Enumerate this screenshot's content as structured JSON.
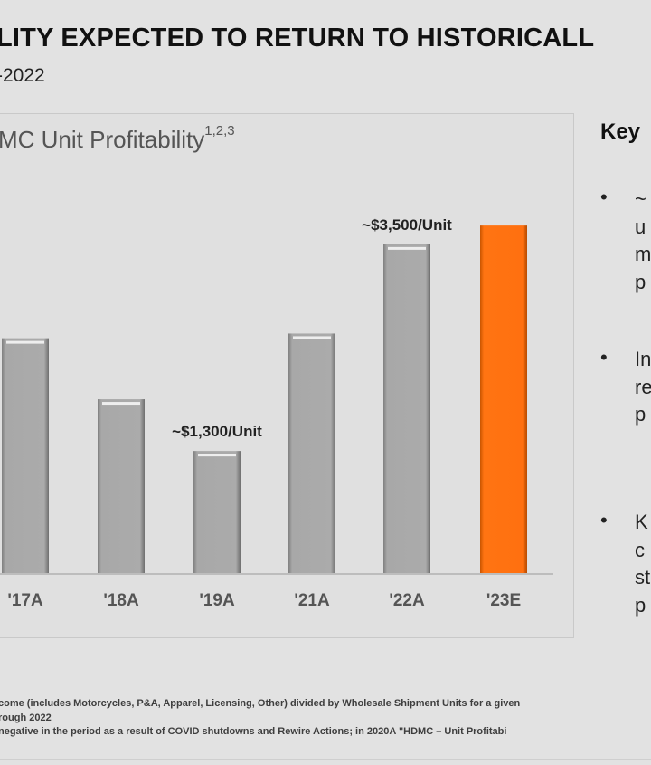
{
  "header": {
    "title": "LITY EXPECTED TO RETURN TO HISTORICALL",
    "subtitle": "-2022"
  },
  "key_panel": {
    "title": "Key",
    "bullets": [
      {
        "symbol": "•",
        "lines": [
          "~",
          "u",
          "m",
          "p"
        ]
      },
      {
        "symbol": "•",
        "lines": [
          "In",
          "re",
          "p"
        ]
      },
      {
        "symbol": "•",
        "lines": [
          "K",
          "c",
          "st",
          "p"
        ]
      }
    ]
  },
  "footnotes": [
    "come (includes Motorcycles, P&A, Apparel, Licensing, Other) divided by Wholesale Shipment Units for a given",
    "rough 2022",
    "negative in the period as a result of COVID shutdowns and Rewire Actions; in 2020A \"HDMC – Unit Profitabi"
  ],
  "chart_data": {
    "type": "bar",
    "title": "MC Unit Profitability",
    "title_superscript": "1,2,3",
    "xlabel": "",
    "ylabel": "",
    "categories": [
      "'17A",
      "'18A",
      "'19A",
      "'21A",
      "'22A",
      "'23E"
    ],
    "values": [
      2500,
      1850,
      1300,
      2550,
      3500,
      3700
    ],
    "ylim": [
      0,
      4000
    ],
    "grid": false,
    "legend": "none",
    "annotations": [
      {
        "category": "'19A",
        "text": "~$1,300/Unit"
      },
      {
        "category": "'22A",
        "text": "~$3,500/Unit"
      }
    ],
    "colors": {
      "actual": "#a9a9a9",
      "estimate": "#ff7010",
      "axis": "#bdbdbd"
    },
    "highlight_category": "'23E"
  }
}
